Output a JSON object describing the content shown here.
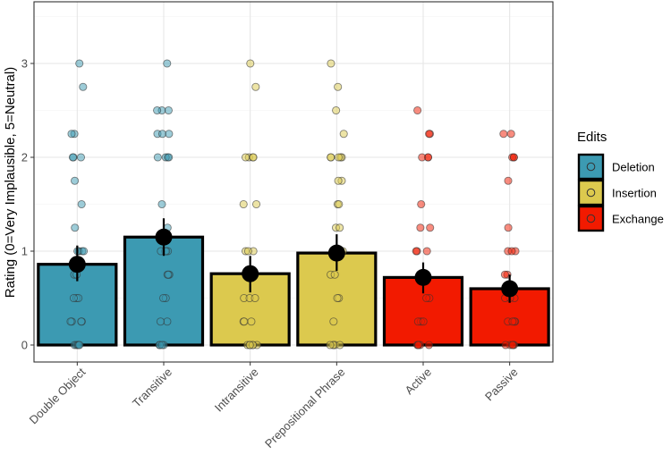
{
  "chart_data": {
    "type": "bar",
    "title": "",
    "xlabel": "",
    "ylabel": "Rating (0=Very Implausible, 5=Neutral)",
    "ylim": [
      -0.17,
      3.55
    ],
    "yticks": [
      0,
      1,
      2,
      3
    ],
    "grid": true,
    "legend": {
      "title": "Edits",
      "placement": "right",
      "entries": [
        {
          "label": "Deletion",
          "color": "#3c9ab2"
        },
        {
          "label": "Insertion",
          "color": "#dcc94e"
        },
        {
          "label": "Exchange",
          "color": "#f21a00"
        }
      ]
    },
    "categories": [
      "Double Object",
      "Transitive",
      "Intransitive",
      "Prepositional Phrase",
      "Active",
      "Passive"
    ],
    "bars": [
      {
        "category": "Double Object",
        "edit": "Deletion",
        "value": 0.86,
        "ci": [
          0.68,
          1.06
        ],
        "points": [
          3.0,
          2.75,
          2.25,
          2.25,
          2.0,
          2.0,
          2.0,
          1.75,
          1.5,
          1.25,
          1.0,
          1.0,
          1.0,
          1.0,
          0.75,
          0.75,
          0.5,
          0.5,
          0.5,
          0.25,
          0.25,
          0.25,
          0.25,
          0.0,
          0.0,
          0.0,
          0.0,
          0.0
        ]
      },
      {
        "category": "Transitive",
        "edit": "Deletion",
        "value": 1.15,
        "ci": [
          0.95,
          1.35
        ],
        "points": [
          3.0,
          2.5,
          2.5,
          2.5,
          2.25,
          2.25,
          2.25,
          2.0,
          2.0,
          2.0,
          2.0,
          1.5,
          1.25,
          1.0,
          1.0,
          1.0,
          1.0,
          0.75,
          0.75,
          0.75,
          0.5,
          0.5,
          0.25,
          0.25,
          0.0,
          0.0,
          0.0,
          0.0
        ]
      },
      {
        "category": "Intransitive",
        "edit": "Insertion",
        "value": 0.76,
        "ci": [
          0.56,
          0.95
        ],
        "points": [
          3.0,
          2.75,
          2.0,
          2.0,
          2.0,
          2.0,
          1.5,
          1.5,
          1.0,
          1.0,
          1.0,
          0.75,
          0.75,
          0.5,
          0.5,
          0.5,
          0.25,
          0.25,
          0.25,
          0.0,
          0.0,
          0.0,
          0.0,
          0.0,
          0.0
        ]
      },
      {
        "category": "Prepositional Phrase",
        "edit": "Insertion",
        "value": 0.98,
        "ci": [
          0.79,
          1.18
        ],
        "points": [
          3.0,
          2.75,
          2.5,
          2.25,
          2.0,
          2.0,
          2.0,
          2.0,
          2.0,
          1.75,
          1.75,
          1.5,
          1.5,
          1.25,
          1.25,
          1.0,
          1.0,
          1.0,
          0.75,
          0.75,
          0.5,
          0.5,
          0.25,
          0.0,
          0.0,
          0.0,
          0.0,
          0.0
        ]
      },
      {
        "category": "Active",
        "edit": "Exchange",
        "value": 0.72,
        "ci": [
          0.55,
          0.88
        ],
        "points": [
          2.5,
          2.25,
          2.25,
          2.0,
          2.0,
          2.0,
          1.5,
          1.25,
          1.25,
          1.0,
          1.0,
          1.0,
          0.75,
          0.75,
          0.5,
          0.5,
          0.25,
          0.25,
          0.25,
          0.0,
          0.0,
          0.0,
          0.0,
          0.0
        ]
      },
      {
        "category": "Passive",
        "edit": "Exchange",
        "value": 0.6,
        "ci": [
          0.45,
          0.75
        ],
        "points": [
          2.25,
          2.25,
          2.0,
          2.0,
          2.0,
          1.75,
          1.25,
          1.0,
          1.0,
          1.0,
          0.75,
          0.75,
          0.5,
          0.5,
          0.5,
          0.25,
          0.25,
          0.25,
          0.25,
          0.0,
          0.0,
          0.0,
          0.0,
          0.0
        ]
      }
    ]
  }
}
